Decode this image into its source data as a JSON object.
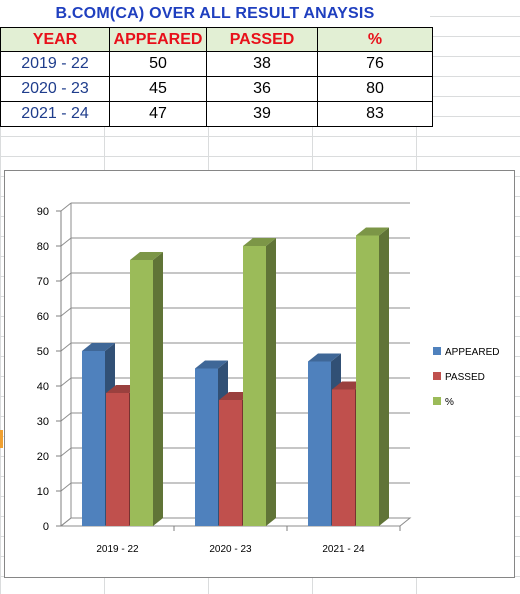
{
  "title": "B.COM(CA) OVER ALL RESULT ANAYSIS",
  "table": {
    "headers": [
      "YEAR",
      "APPEARED",
      "PASSED",
      "%"
    ],
    "rows": [
      {
        "year": "2019 - 22",
        "appeared": "50",
        "passed": "38",
        "pct": "76"
      },
      {
        "year": "2020 - 23",
        "appeared": "45",
        "passed": "36",
        "pct": "80"
      },
      {
        "year": "2021 - 24",
        "appeared": "47",
        "passed": "39",
        "pct": "83"
      }
    ]
  },
  "chart_data": {
    "type": "bar",
    "categories": [
      "2019 - 22",
      "2020 - 23",
      "2021 - 24"
    ],
    "series": [
      {
        "name": "APPEARED",
        "values": [
          50,
          45,
          47
        ],
        "color": "#4f81bd"
      },
      {
        "name": "PASSED",
        "values": [
          38,
          36,
          39
        ],
        "color": "#c0504d"
      },
      {
        "name": "%",
        "values": [
          76,
          80,
          83
        ],
        "color": "#9bbb59"
      }
    ],
    "ylim": [
      0,
      90
    ],
    "yticks": [
      0,
      10,
      20,
      30,
      40,
      50,
      60,
      70,
      80,
      90
    ],
    "grid": true,
    "legend": "right",
    "title": "",
    "xlabel": "",
    "ylabel": ""
  }
}
